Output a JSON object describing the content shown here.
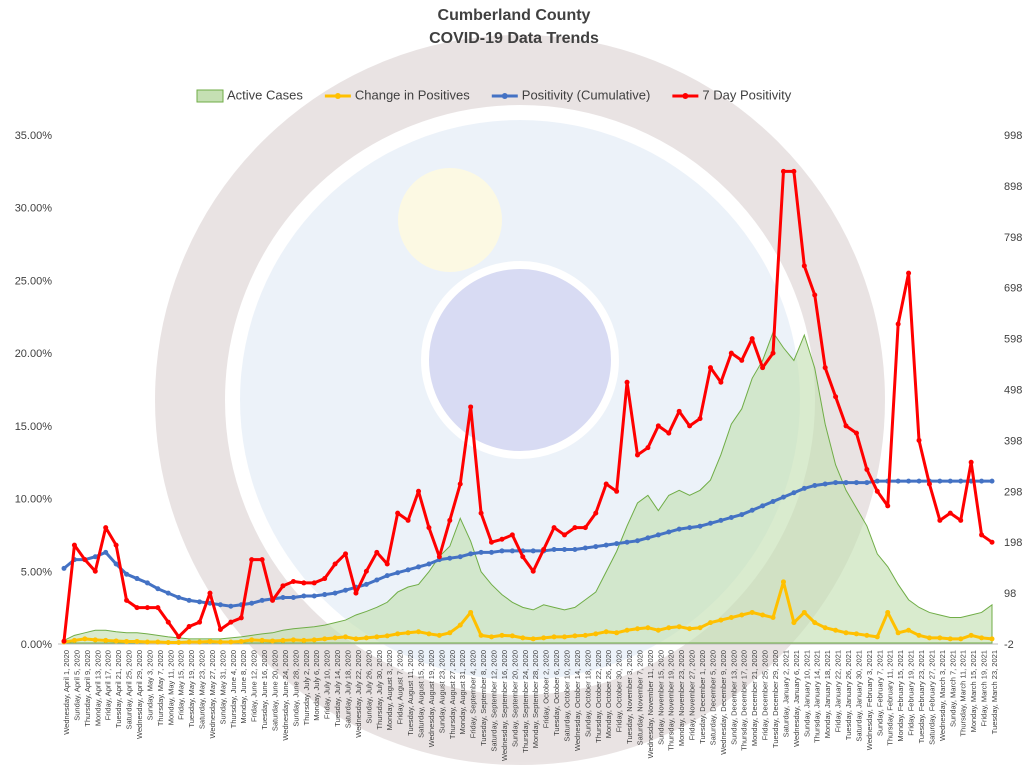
{
  "chart_data": {
    "type": "line",
    "title": "Cumberland County",
    "subtitle": "COVID-19 Data Trends",
    "legend": "top",
    "grid": false,
    "ylim": [
      0,
      35
    ],
    "yticks": [
      {
        "value": 0,
        "label": "0.00%"
      },
      {
        "value": 5,
        "label": "5.00%"
      },
      {
        "value": 10,
        "label": "10.00%"
      },
      {
        "value": 15,
        "label": "15.00%"
      },
      {
        "value": 20,
        "label": "20.00%"
      },
      {
        "value": 25,
        "label": "25.00%"
      },
      {
        "value": 30,
        "label": "30.00%"
      },
      {
        "value": 35,
        "label": "35.00%"
      }
    ],
    "y2lim": [
      -2,
      998
    ],
    "y2ticks": [
      -2,
      98,
      198,
      298,
      398,
      498,
      598,
      698,
      798,
      898,
      998
    ],
    "categories": [
      "Wednesday, April 1, 2020",
      "Sunday, April 5, 2020",
      "Thursday, April 9, 2020",
      "Monday, April 13, 2020",
      "Friday, April 17, 2020",
      "Tuesday, April 21, 2020",
      "Saturday, April 25, 2020",
      "Wednesday, April 29, 2020",
      "Sunday, May 3, 2020",
      "Thursday, May 7, 2020",
      "Monday, May 11, 2020",
      "Friday, May 15, 2020",
      "Tuesday, May 19, 2020",
      "Saturday, May 23, 2020",
      "Wednesday, May 27, 2020",
      "Sunday, May 31, 2020",
      "Thursday, June 4, 2020",
      "Monday, June 8, 2020",
      "Friday, June 12, 2020",
      "Tuesday, June 16, 2020",
      "Saturday, June 20, 2020",
      "Wednesday, June 24, 2020",
      "Sunday, June 28, 2020",
      "Thursday, July 2, 2020",
      "Monday, July 6, 2020",
      "Friday, July 10, 2020",
      "Tuesday, July 14, 2020",
      "Saturday, July 18, 2020",
      "Wednesday, July 22, 2020",
      "Sunday, July 26, 2020",
      "Thursday, July 30, 2020",
      "Monday, August 3, 2020",
      "Friday, August 7, 2020",
      "Tuesday, August 11, 2020",
      "Saturday, August 15, 2020",
      "Wednesday, August 19, 2020",
      "Sunday, August 23, 2020",
      "Thursday, August 27, 2020",
      "Monday, August 31, 2020",
      "Friday, September 4, 2020",
      "Tuesday, September 8, 2020",
      "Saturday, September 12, 2020",
      "Wednesday, September 16, 2020",
      "Sunday, September 20, 2020",
      "Thursday, September 24, 2020",
      "Monday, September 28, 2020",
      "Friday, October 2, 2020",
      "Tuesday, October 6, 2020",
      "Saturday, October 10, 2020",
      "Wednesday, October 14, 2020",
      "Sunday, October 18, 2020",
      "Thursday, October 22, 2020",
      "Monday, October 26, 2020",
      "Friday, October 30, 2020",
      "Tuesday, November 3, 2020",
      "Saturday, November 7, 2020",
      "Wednesday, November 11, 2020",
      "Sunday, November 15, 2020",
      "Thursday, November 19, 2020",
      "Monday, November 23, 2020",
      "Friday, November 27, 2020",
      "Tuesday, December 1, 2020",
      "Saturday, December 5, 2020",
      "Wednesday, December 9, 2020",
      "Sunday, December 13, 2020",
      "Thursday, December 17, 2020",
      "Monday, December 21, 2020",
      "Friday, December 25, 2020",
      "Tuesday, December 29, 2020",
      "Saturday, January 2, 2021",
      "Wednesday, January 6, 2021",
      "Sunday, January 10, 2021",
      "Thursday, January 14, 2021",
      "Monday, January 18, 2021",
      "Friday, January 22, 2021",
      "Tuesday, January 26, 2021",
      "Saturday, January 30, 2021",
      "Wednesday, February 3, 2021",
      "Sunday, February 7, 2021",
      "Thursday, February 11, 2021",
      "Monday, February 15, 2021",
      "Friday, February 19, 2021",
      "Tuesday, February 23, 2021",
      "Saturday, February 27, 2021",
      "Wednesday, March 3, 2021",
      "Sunday, March 7, 2021",
      "Thursday, March 11, 2021",
      "Monday, March 15, 2021",
      "Friday, March 19, 2021",
      "Tuesday, March 23, 2021"
    ],
    "series": [
      {
        "name": "Active Cases",
        "kind": "area",
        "axis": "y2",
        "color": "#70ad47",
        "values": [
          5,
          15,
          20,
          25,
          25,
          22,
          20,
          20,
          18,
          15,
          12,
          10,
          8,
          8,
          8,
          8,
          10,
          12,
          15,
          18,
          20,
          25,
          28,
          30,
          32,
          35,
          40,
          45,
          55,
          62,
          70,
          80,
          100,
          110,
          115,
          140,
          170,
          190,
          245,
          200,
          140,
          115,
          95,
          80,
          70,
          65,
          75,
          70,
          65,
          70,
          85,
          100,
          140,
          180,
          230,
          275,
          290,
          260,
          290,
          300,
          290,
          300,
          320,
          370,
          430,
          460,
          520,
          555,
          610,
          580,
          555,
          605,
          540,
          430,
          350,
          300,
          265,
          230,
          175,
          150,
          115,
          85,
          70,
          60,
          55,
          50,
          50,
          55,
          60,
          75
        ]
      },
      {
        "name": "Change in Positives",
        "kind": "line",
        "axis": "y2",
        "color": "#ffc000",
        "values": [
          2,
          5,
          8,
          6,
          5,
          4,
          3,
          3,
          2,
          2,
          1,
          1,
          2,
          2,
          3,
          2,
          2,
          3,
          6,
          5,
          4,
          5,
          6,
          5,
          6,
          8,
          10,
          12,
          8,
          10,
          12,
          14,
          18,
          20,
          22,
          18,
          15,
          20,
          35,
          60,
          15,
          12,
          15,
          14,
          10,
          8,
          10,
          12,
          12,
          14,
          15,
          18,
          22,
          20,
          25,
          28,
          30,
          25,
          30,
          32,
          28,
          30,
          40,
          45,
          50,
          55,
          60,
          55,
          50,
          120,
          40,
          60,
          40,
          30,
          25,
          20,
          18,
          15,
          12,
          60,
          20,
          25,
          15,
          10,
          10,
          8,
          8,
          15,
          10,
          8
        ]
      },
      {
        "name": "Positivity (Cumulative)",
        "kind": "line",
        "axis": "y",
        "color": "#4472c4",
        "values": [
          5.2,
          5.8,
          5.8,
          6.0,
          6.3,
          5.5,
          4.8,
          4.5,
          4.2,
          3.8,
          3.5,
          3.2,
          3.0,
          2.9,
          2.8,
          2.7,
          2.6,
          2.7,
          2.8,
          3.0,
          3.1,
          3.2,
          3.2,
          3.3,
          3.3,
          3.4,
          3.5,
          3.7,
          3.9,
          4.1,
          4.4,
          4.7,
          4.9,
          5.1,
          5.3,
          5.5,
          5.8,
          5.9,
          6.0,
          6.2,
          6.3,
          6.3,
          6.4,
          6.4,
          6.4,
          6.4,
          6.4,
          6.5,
          6.5,
          6.5,
          6.6,
          6.7,
          6.8,
          6.9,
          7.0,
          7.1,
          7.3,
          7.5,
          7.7,
          7.9,
          8.0,
          8.1,
          8.3,
          8.5,
          8.7,
          8.9,
          9.2,
          9.5,
          9.8,
          10.1,
          10.4,
          10.7,
          10.9,
          11.0,
          11.1,
          11.1,
          11.1,
          11.1,
          11.2,
          11.2,
          11.2,
          11.2,
          11.2,
          11.2,
          11.2,
          11.2,
          11.2,
          11.2,
          11.2,
          11.2
        ]
      },
      {
        "name": "7 Day Positivity",
        "kind": "line",
        "axis": "y",
        "color": "#ff0000",
        "values": [
          0.2,
          6.8,
          5.8,
          5.0,
          8.0,
          6.8,
          3.0,
          2.5,
          2.5,
          2.5,
          1.5,
          0.5,
          1.2,
          1.5,
          3.5,
          1.0,
          1.5,
          1.8,
          5.8,
          5.8,
          3.0,
          4.0,
          4.3,
          4.2,
          4.2,
          4.5,
          5.5,
          6.2,
          3.5,
          5.0,
          6.3,
          5.5,
          9.0,
          8.5,
          10.5,
          8.0,
          6.0,
          8.5,
          11.0,
          16.3,
          9.0,
          7.0,
          7.2,
          7.5,
          6.0,
          5.0,
          6.5,
          8.0,
          7.5,
          8.0,
          8.0,
          9.0,
          11.0,
          10.5,
          18.0,
          13.0,
          13.5,
          15.0,
          14.5,
          16.0,
          15.0,
          15.5,
          19.0,
          18.0,
          20.0,
          19.5,
          21.0,
          19.0,
          20.0,
          32.5,
          32.5,
          26.0,
          24.0,
          19.0,
          17.0,
          15.0,
          14.5,
          12.0,
          10.5,
          9.5,
          22.0,
          25.5,
          14.0,
          11.0,
          8.5,
          9.0,
          8.5,
          12.5,
          7.5,
          7.0
        ]
      }
    ]
  }
}
